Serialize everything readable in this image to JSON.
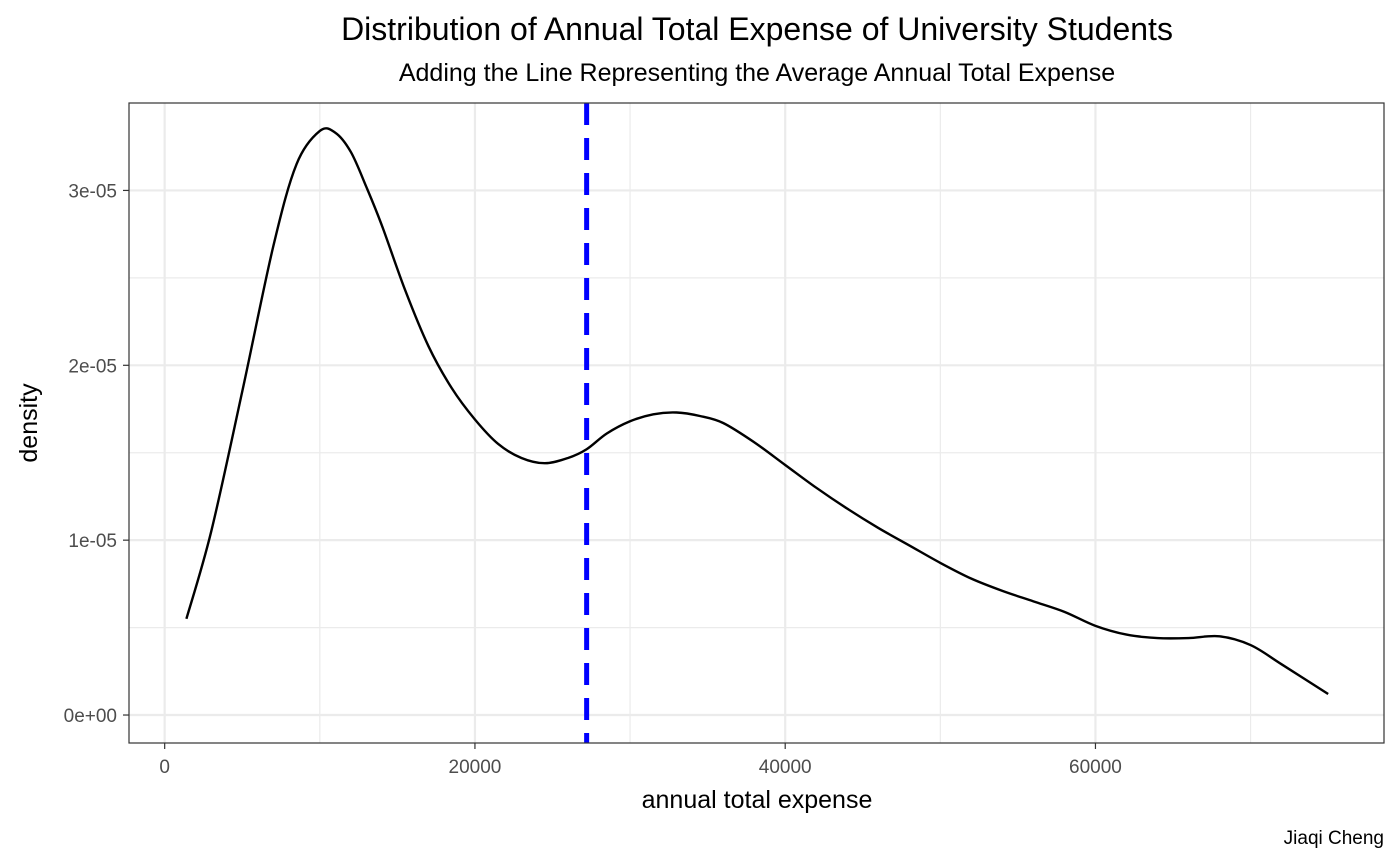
{
  "chart_data": {
    "type": "density",
    "title": "Distribution of Annual Total Expense of University Students",
    "subtitle": "Adding the Line Representing the Average Annual Total Expense",
    "xlabel": "annual total expense",
    "ylabel": "density",
    "caption": "Jiaqi Cheng",
    "xlim": [
      -2300,
      78600
    ],
    "ylim": [
      -1.6e-06,
      3.5e-05
    ],
    "x_ticks": [
      0,
      20000,
      40000,
      60000
    ],
    "x_tick_labels": [
      "0",
      "20000",
      "40000",
      "60000"
    ],
    "y_ticks": [
      0,
      1e-05,
      2e-05,
      3e-05
    ],
    "y_tick_labels": [
      "0e+00",
      "1e-05",
      "2e-05",
      "3e-05"
    ],
    "grid": true,
    "series": [
      {
        "color": "#000000",
        "x": [
          1400,
          3000,
          5000,
          7000,
          8500,
          10000,
          11000,
          12000,
          13000,
          14000,
          15500,
          17000,
          18500,
          20000,
          21500,
          23000,
          24500,
          26000,
          27200,
          28500,
          30000,
          31500,
          33000,
          34500,
          36000,
          38000,
          40000,
          42000,
          44000,
          46000,
          48000,
          50000,
          52000,
          54000,
          56000,
          58000,
          60000,
          62000,
          64000,
          66000,
          68000,
          70000,
          72000,
          75000
        ],
        "y": [
          5.5e-06,
          1.05e-05,
          1.85e-05,
          2.68e-05,
          3.15e-05,
          3.34e-05,
          3.33e-05,
          3.22e-05,
          3.02e-05,
          2.8e-05,
          2.43e-05,
          2.11e-05,
          1.87e-05,
          1.69e-05,
          1.55e-05,
          1.47e-05,
          1.44e-05,
          1.47e-05,
          1.52e-05,
          1.61e-05,
          1.68e-05,
          1.72e-05,
          1.73e-05,
          1.71e-05,
          1.67e-05,
          1.56e-05,
          1.43e-05,
          1.3e-05,
          1.18e-05,
          1.07e-05,
          9.7e-06,
          8.7e-06,
          7.8e-06,
          7.1e-06,
          6.5e-06,
          5.9e-06,
          5.1e-06,
          4.6e-06,
          4.4e-06,
          4.4e-06,
          4.5e-06,
          4e-06,
          2.9e-06,
          1.2e-06
        ]
      }
    ],
    "mean_line": {
      "x": 27200,
      "color": "#0000ff",
      "style": "dashed"
    }
  }
}
